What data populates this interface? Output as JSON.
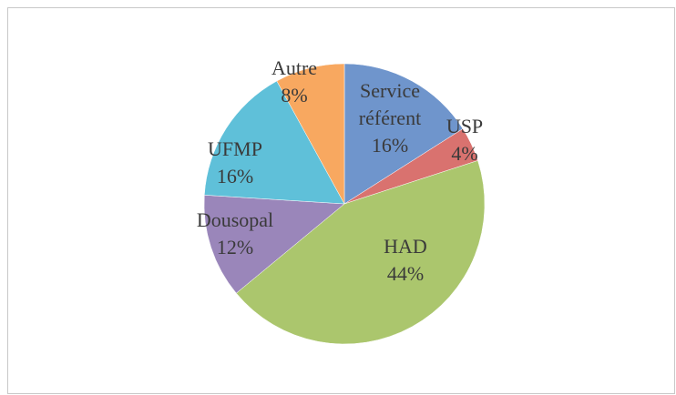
{
  "chart_data": {
    "type": "pie",
    "categories": [
      "Service référent",
      "USP",
      "HAD",
      "Dousopal",
      "UFMP",
      "Autre"
    ],
    "values": [
      16,
      4,
      44,
      12,
      16,
      8
    ],
    "value_labels": [
      "16%",
      "4%",
      "44%",
      "12%",
      "16%",
      "8%"
    ],
    "colors": [
      "#6f95cc",
      "#d9726f",
      "#abc66d",
      "#9a86ba",
      "#5fc0d9",
      "#f8a860"
    ]
  }
}
